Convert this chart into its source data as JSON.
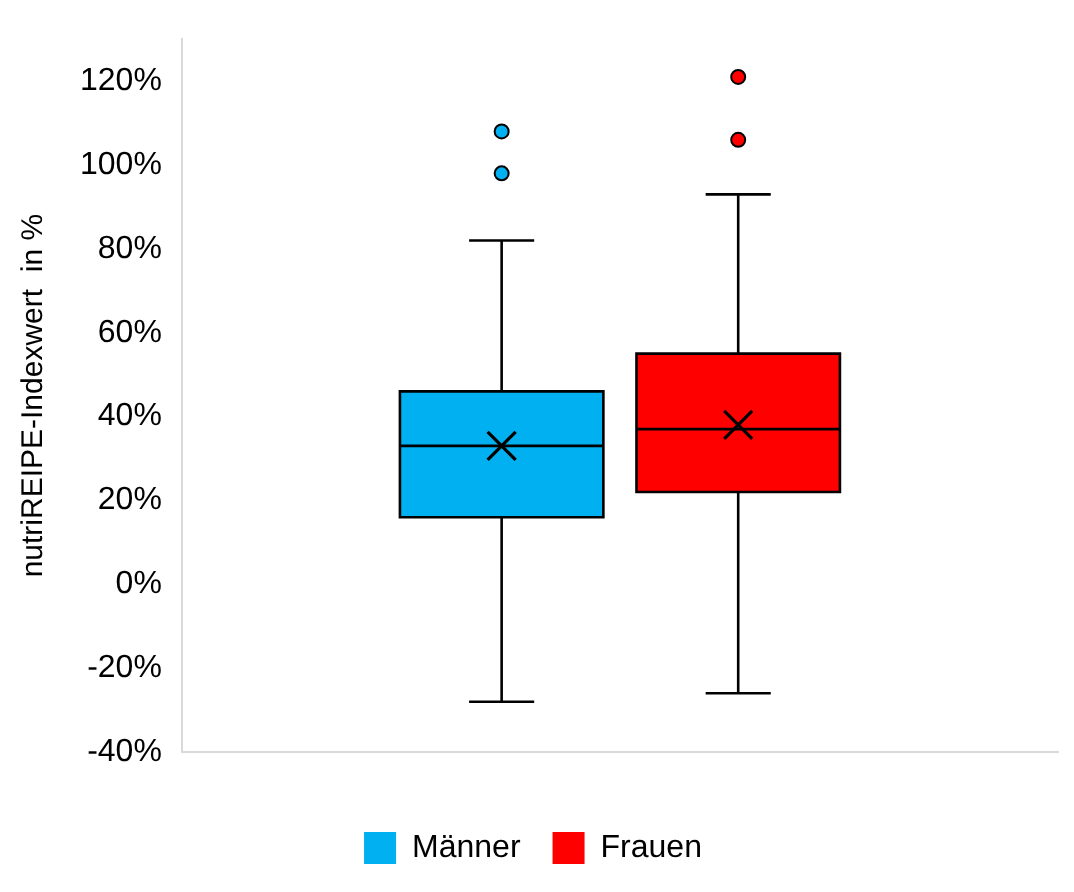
{
  "chart_data": {
    "type": "box",
    "ylabel": "nutriREIPE-Indexwert  in %",
    "categories": [
      null
    ],
    "ylim": [
      -40,
      130
    ],
    "yticks": [
      {
        "value": -40,
        "label": "-40%"
      },
      {
        "value": -20,
        "label": "-20%"
      },
      {
        "value": 0,
        "label": "0%"
      },
      {
        "value": 20,
        "label": "20%"
      },
      {
        "value": 40,
        "label": "40%"
      },
      {
        "value": 60,
        "label": "60%"
      },
      {
        "value": 80,
        "label": "80%"
      },
      {
        "value": 100,
        "label": "100%"
      },
      {
        "value": 120,
        "label": "120%"
      }
    ],
    "grid": false,
    "legend": "bottom",
    "series": [
      {
        "name": "Männer",
        "color": "#00b0f0",
        "boxes": [
          {
            "low": -28,
            "q1": 16,
            "median": 33,
            "q3": 46,
            "high": 82,
            "mean": 33,
            "outliers": [
              98,
              108
            ]
          }
        ]
      },
      {
        "name": "Frauen",
        "color": "#ff0000",
        "boxes": [
          {
            "low": -26,
            "q1": 22,
            "median": 37,
            "q3": 55,
            "high": 93,
            "mean": 38,
            "outliers": [
              106,
              121
            ]
          }
        ]
      }
    ]
  }
}
